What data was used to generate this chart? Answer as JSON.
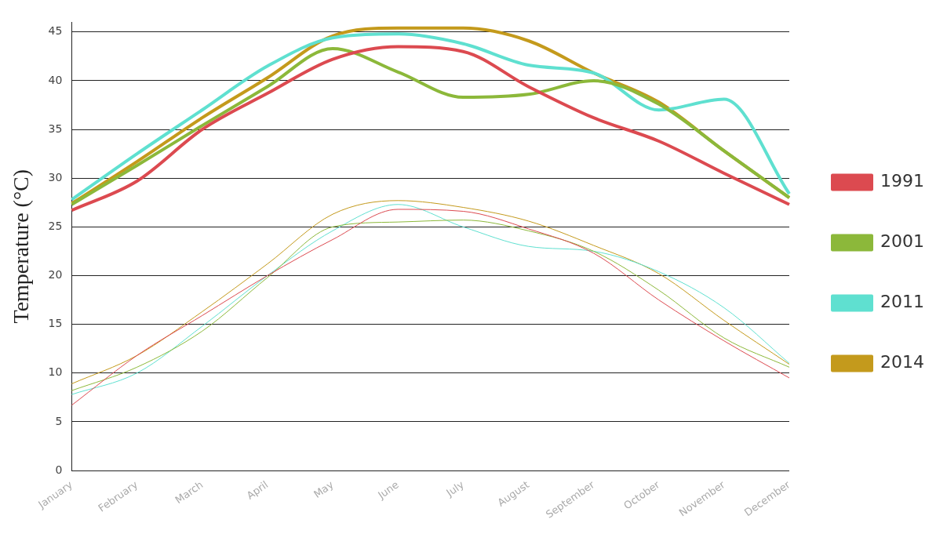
{
  "chart_data": {
    "type": "line",
    "ylabel": "Temperature (°C)",
    "categories": [
      "January",
      "February",
      "March",
      "April",
      "May",
      "June",
      "July",
      "August",
      "September",
      "October",
      "November",
      "December"
    ],
    "ylim": [
      0,
      46
    ],
    "yticks": [
      0,
      5,
      10,
      15,
      20,
      25,
      30,
      35,
      40,
      45
    ],
    "grid": "y",
    "legend": "right",
    "series": [
      {
        "name": "1991",
        "color": "#dc4a50",
        "values": [
          26.7,
          29.7,
          35,
          38.7,
          42.2,
          43.5,
          43,
          39.4,
          36.2,
          33.8,
          30.5,
          27.3
        ]
      },
      {
        "name": "2001",
        "color": "#8cb83a",
        "values": [
          27.3,
          31.3,
          35.4,
          39.4,
          43.3,
          40.9,
          38.3,
          38.6,
          40,
          37.6,
          32.8,
          28
        ]
      },
      {
        "name": "2011",
        "color": "#5fe0d0",
        "values": [
          27.8,
          32.5,
          37,
          41.5,
          44.4,
          44.8,
          43.8,
          41.6,
          40.8,
          37,
          38.1,
          28.4
        ]
      },
      {
        "name": "2014",
        "color": "#c49a1c",
        "values": [
          27.4,
          31.7,
          36.2,
          40.3,
          44.6,
          45.4,
          45.4,
          44.1,
          40.8,
          37.8,
          32.8,
          28
        ]
      },
      {
        "color": "#dc4a50",
        "values": [
          6.7,
          11.8,
          15.9,
          20,
          23.7,
          26.8,
          26.6,
          24.8,
          22.3,
          17.5,
          13.3,
          9.5
        ]
      },
      {
        "color": "#8cb83a",
        "values": [
          8.2,
          10.6,
          14.3,
          19.8,
          25,
          25.5,
          25.7,
          24.6,
          22.5,
          18.5,
          13.6,
          10.6
        ]
      },
      {
        "color": "#5fe0d0",
        "values": [
          7.8,
          10,
          14.8,
          20,
          24.6,
          27.3,
          25,
          23,
          22.5,
          20.4,
          16.7,
          11
        ]
      },
      {
        "color": "#c49a1c",
        "values": [
          8.9,
          11.8,
          16.3,
          21.2,
          26.3,
          27.7,
          27,
          25.6,
          23.1,
          20.2,
          15.4,
          10.9
        ]
      }
    ]
  }
}
